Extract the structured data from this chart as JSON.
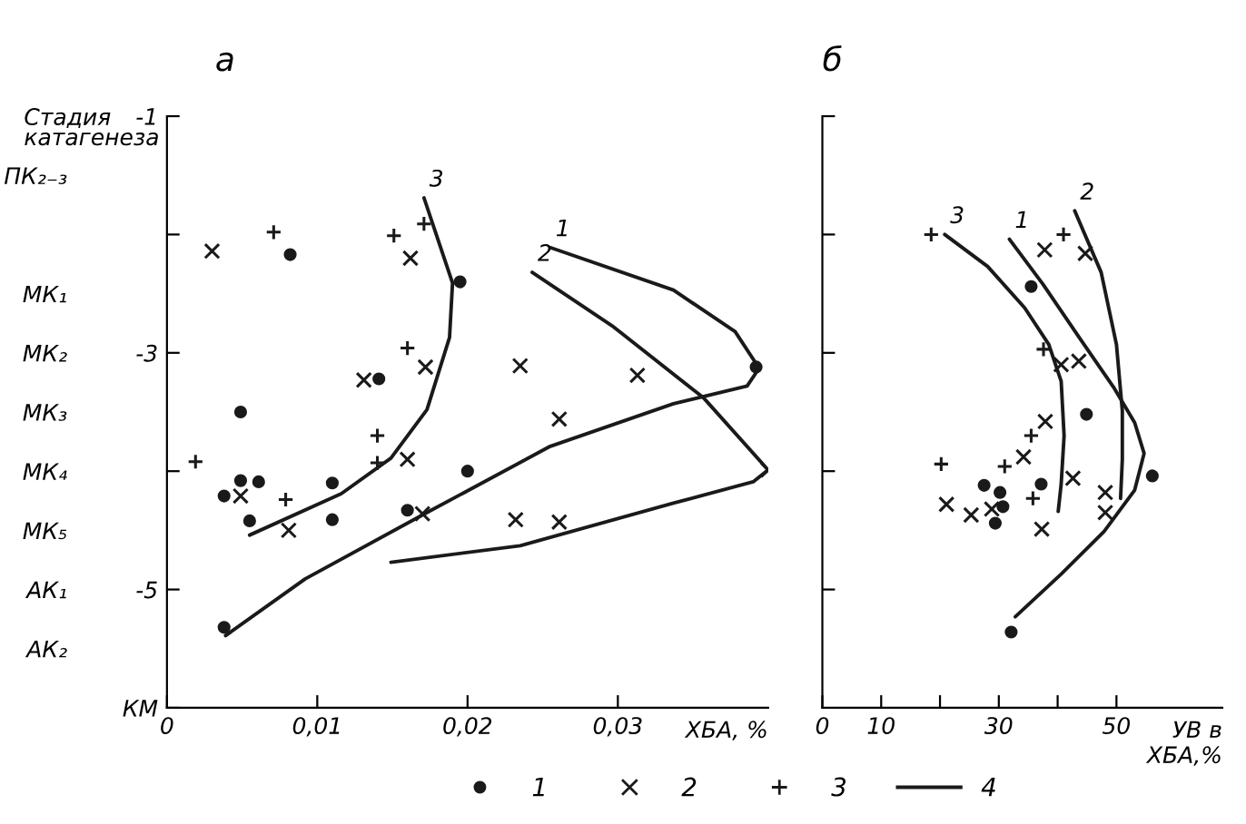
{
  "chart_data": [
    {
      "type": "scatter",
      "title": "а",
      "xlabel": "ХБА, %",
      "y2label": "Стадия\nкатагенеза",
      "xlim": [
        0,
        0.04
      ],
      "xticks": [
        0,
        {
          "value": 0.01,
          "label": "0,01"
        },
        {
          "value": 0.02,
          "label": "0,02"
        },
        {
          "value": 0.03,
          "label": "0,03"
        }
      ],
      "ylim": [
        -6,
        -1
      ],
      "yticks": [
        -1,
        {
          "value": -2,
          "label": null
        },
        -3,
        {
          "value": -4,
          "label": null
        },
        -5,
        {
          "value": -6,
          "label": "КМ"
        }
      ],
      "y2_categories": [
        "ПК₂₋₃",
        null,
        "МК₁",
        "МК₂",
        "МК₃",
        "МК₄",
        "МК₅",
        "АК₁",
        "АК₂"
      ],
      "grid": false,
      "legend": "bottom",
      "series": [
        {
          "name": "1",
          "marker": "circle",
          "color": "#1a1a1a",
          "x": [
            0.0082,
            0.0195,
            0.0392,
            0.0141,
            0.0049,
            0.0049,
            0.0061,
            0.0038,
            0.011,
            0.02,
            0.0055,
            0.011,
            0.016,
            0.0038
          ],
          "values": [
            -2.17,
            -2.4,
            -3.12,
            -3.22,
            -3.5,
            -4.08,
            -4.09,
            -4.21,
            -4.1,
            -4.0,
            -4.42,
            -4.41,
            -4.33,
            -5.32
          ]
        },
        {
          "name": "2",
          "marker": "x",
          "color": "#1a1a1a",
          "x": [
            0.003,
            0.0162,
            0.0172,
            0.0131,
            0.0235,
            0.0313,
            0.0261,
            0.016,
            0.0049,
            0.0081,
            0.017,
            0.0232,
            0.0261,
            0.04
          ],
          "values": [
            -2.14,
            -2.2,
            -3.12,
            -3.23,
            -3.11,
            -3.19,
            -3.56,
            -3.9,
            -4.21,
            -4.5,
            -4.36,
            -4.41,
            -4.43,
            -3.99
          ]
        },
        {
          "name": "3",
          "marker": "cross",
          "color": "#1a1a1a",
          "x": [
            0.0071,
            0.0151,
            0.0171,
            0.016,
            0.014,
            0.014,
            0.0019,
            0.0079
          ],
          "values": [
            -1.98,
            -2.01,
            -1.91,
            -2.96,
            -3.7,
            -3.93,
            -3.92,
            -4.24
          ]
        },
        {
          "name": "4",
          "type": "line",
          "color": "#1a1a1a",
          "x": [
            0.0255,
            0.0337,
            0.0378,
            0.0394,
            0.0386,
            0.0337,
            0.0255,
            0.0173,
            0.0092,
            0.0039
          ],
          "values": [
            -2.11,
            -2.47,
            -2.82,
            -3.13,
            -3.28,
            -3.43,
            -3.79,
            -4.35,
            -4.91,
            -5.39
          ]
        },
        {
          "type": "line",
          "color": "#1a1a1a",
          "x": [
            0.0243,
            0.0296,
            0.0357,
            0.04,
            0.039,
            0.0337,
            0.0235,
            0.0149
          ],
          "values": [
            -2.32,
            -2.77,
            -3.38,
            -3.99,
            -4.09,
            -4.27,
            -4.63,
            -4.77
          ]
        },
        {
          "type": "line",
          "color": "#1a1a1a",
          "x": [
            0.0171,
            0.019,
            0.0188,
            0.0173,
            0.0149,
            0.0116,
            0.0055
          ],
          "values": [
            -1.69,
            -2.41,
            -2.87,
            -3.48,
            -3.89,
            -4.19,
            -4.54
          ]
        }
      ],
      "annotations": [
        {
          "text": "1",
          "x": 0.0255,
          "y": -2.11
        },
        {
          "text": "2",
          "x": 0.0243,
          "y": -2.32
        },
        {
          "text": "3",
          "x": 0.0171,
          "y": -1.69
        }
      ]
    },
    {
      "type": "scatter",
      "title": "б",
      "xlabel": "УВ в\nХБА,%",
      "xlim": [
        0,
        68
      ],
      "xticks": [
        0,
        10,
        {
          "value": 20,
          "label": null
        },
        30,
        {
          "value": 40,
          "label": null
        },
        50
      ],
      "ylim": [
        -6,
        -1
      ],
      "yticks": [
        -1,
        -2,
        -3,
        -4,
        -5
      ],
      "tick_labels": "x",
      "grid": false,
      "series": [
        {
          "marker": "circle",
          "color": "#1a1a1a",
          "x": [
            35.5,
            44.9,
            56.1,
            27.5,
            30.2,
            37.2,
            30.7,
            29.4,
            32.1
          ],
          "values": [
            -2.44,
            -3.52,
            -4.04,
            -4.12,
            -4.18,
            -4.11,
            -4.3,
            -4.44,
            -5.36
          ]
        },
        {
          "marker": "x",
          "color": "#1a1a1a",
          "x": [
            37.8,
            44.7,
            40.6,
            43.6,
            37.9,
            34.2,
            42.6,
            21.1,
            25.3,
            28.8,
            48.1,
            48.1,
            37.3
          ],
          "values": [
            -2.13,
            -2.16,
            -3.1,
            -3.07,
            -3.58,
            -3.88,
            -4.06,
            -4.28,
            -4.37,
            -4.32,
            -4.18,
            -4.35,
            -4.49
          ]
        },
        {
          "marker": "cross",
          "color": "#1a1a1a",
          "x": [
            18.5,
            41.0,
            37.6,
            35.5,
            20.2,
            31.0,
            35.8
          ],
          "values": [
            -2.0,
            -2.0,
            -2.97,
            -3.7,
            -3.94,
            -3.96,
            -4.23
          ]
        },
        {
          "type": "line",
          "color": "#1a1a1a",
          "x": [
            31.8,
            37.5,
            43.8,
            49.5,
            53.1,
            54.7,
            53.1,
            47.9,
            40.6,
            32.8
          ],
          "values": [
            -2.04,
            -2.42,
            -2.88,
            -3.29,
            -3.59,
            -3.85,
            -4.16,
            -4.51,
            -4.87,
            -5.23
          ]
        },
        {
          "type": "line",
          "color": "#1a1a1a",
          "x": [
            42.9,
            47.4,
            50.0,
            51.0,
            51.0,
            50.7
          ],
          "values": [
            -1.8,
            -2.32,
            -2.93,
            -3.49,
            -3.9,
            -4.23
          ]
        },
        {
          "type": "line",
          "color": "#1a1a1a",
          "x": [
            20.8,
            28.1,
            34.4,
            38.5,
            40.6,
            41.1,
            40.6,
            40.1
          ],
          "values": [
            -2.0,
            -2.27,
            -2.62,
            -2.93,
            -3.24,
            -3.7,
            -4.11,
            -4.34
          ]
        }
      ],
      "annotations": [
        {
          "text": "1",
          "x": 31.8,
          "y": -2.04
        },
        {
          "text": "2",
          "x": 42.9,
          "y": -1.8
        },
        {
          "text": "3",
          "x": 20.8,
          "y": -2.0
        }
      ]
    }
  ]
}
